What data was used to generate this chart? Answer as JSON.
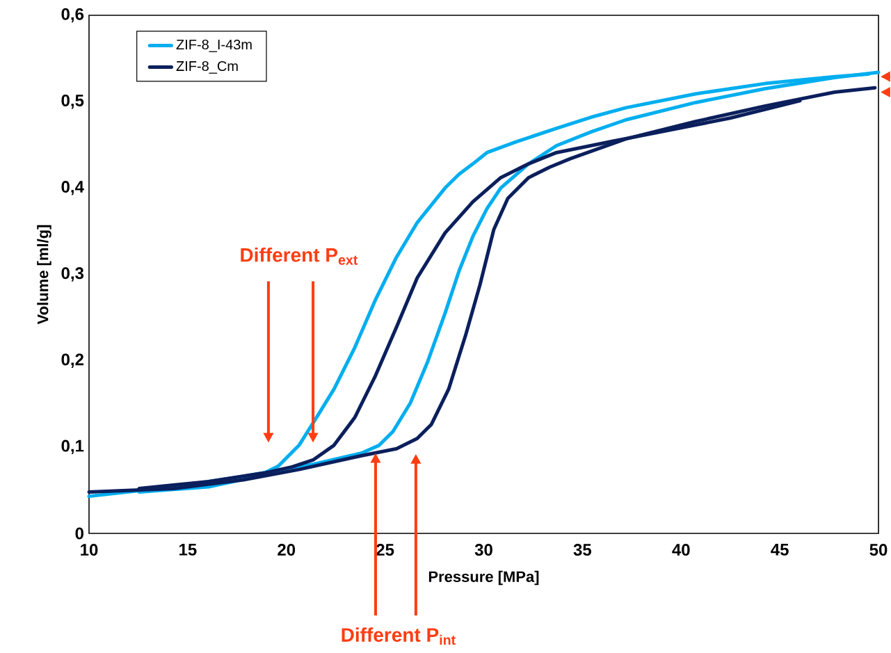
{
  "chart_data": {
    "type": "line",
    "xlabel": "Pressure  [MPa]",
    "ylabel": "Volume [ml/g]",
    "xlim": [
      10,
      50
    ],
    "xticks": [
      10,
      15,
      20,
      25,
      30,
      35,
      40,
      45,
      50
    ],
    "ylim": [
      0,
      0.6
    ],
    "yticks": [
      {
        "value": 0,
        "label": "0"
      },
      {
        "value": 0.1,
        "label": "0,1"
      },
      {
        "value": 0.2,
        "label": "0,2"
      },
      {
        "value": 0.3,
        "label": "0,3"
      },
      {
        "value": 0.4,
        "label": "0,4"
      },
      {
        "value": 0.5,
        "label": "0,5"
      },
      {
        "value": 0.6,
        "label": "0,6"
      }
    ],
    "grid": false,
    "legend": "top left",
    "marker": "none",
    "line_style": "solid",
    "annotations": [
      "Different P$_{ext}$",
      "Different P$_{int}$"
    ],
    "series": [
      {
        "name": "ZIF-8_I-43m",
        "color": "#00aeef",
        "x": [
          10,
          14.3,
          17.82,
          21.35,
          23.81,
          24.7,
          25.4,
          26.28,
          27.16,
          28.04,
          28.75,
          29.45,
          30.16,
          30.86,
          32.27,
          33.68,
          35.44,
          37.21,
          40.73,
          44.26,
          47.78,
          50
        ],
        "values": [
          0.043,
          0.054,
          0.066,
          0.08,
          0.093,
          0.102,
          0.118,
          0.151,
          0.199,
          0.255,
          0.304,
          0.344,
          0.376,
          0.4,
          0.428,
          0.449,
          0.465,
          0.479,
          0.499,
          0.515,
          0.528,
          0.534
        ]
      },
      {
        "color": "#00aeef",
        "x": [
          12.54,
          16.06,
          18.53,
          19.59,
          20.64,
          21.52,
          22.41,
          23.46,
          24.52,
          25.58,
          26.63,
          28.04,
          28.75,
          29.45,
          30.16,
          31.57,
          33.68,
          35.44,
          37.21,
          40.73,
          44.26,
          47.78,
          49.5
        ],
        "values": [
          0.048,
          0.054,
          0.066,
          0.078,
          0.102,
          0.134,
          0.167,
          0.215,
          0.271,
          0.32,
          0.36,
          0.4,
          0.416,
          0.428,
          0.441,
          0.453,
          0.469,
          0.482,
          0.493,
          0.509,
          0.521,
          0.529,
          0.532
        ]
      },
      {
        "name": "ZIF-8_Cm",
        "color": "#0b1f5c",
        "x": [
          10,
          14.3,
          17.82,
          20.64,
          23.81,
          25.58,
          26.63,
          27.34,
          28.22,
          29.1,
          29.81,
          30.51,
          31.22,
          32.27,
          33.33,
          34.39,
          37.21,
          40.73,
          44.26,
          47.78,
          49.82
        ],
        "values": [
          0.048,
          0.052,
          0.062,
          0.074,
          0.09,
          0.098,
          0.11,
          0.126,
          0.167,
          0.231,
          0.288,
          0.352,
          0.388,
          0.412,
          0.424,
          0.434,
          0.457,
          0.477,
          0.495,
          0.511,
          0.516
        ]
      },
      {
        "color": "#0b1f5c",
        "x": [
          12.54,
          16.06,
          18.88,
          20.29,
          21.35,
          22.41,
          23.46,
          24.52,
          25.58,
          26.63,
          28.04,
          29.45,
          30.86,
          32.27,
          33.68,
          36.5,
          38.97,
          42.49,
          46.02
        ],
        "values": [
          0.052,
          0.06,
          0.07,
          0.077,
          0.085,
          0.102,
          0.134,
          0.183,
          0.239,
          0.296,
          0.348,
          0.384,
          0.412,
          0.428,
          0.441,
          0.454,
          0.465,
          0.481,
          0.501
        ]
      }
    ]
  }
}
